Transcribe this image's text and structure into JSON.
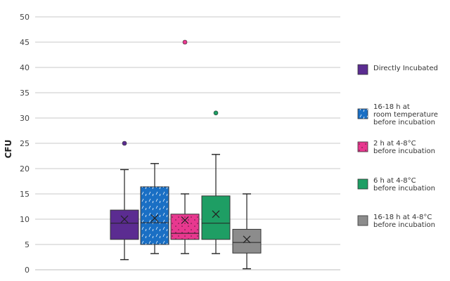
{
  "chart_data": {
    "type": "box",
    "ylabel": "CFU",
    "ylim": [
      0,
      50
    ],
    "yticks": [
      0,
      5,
      10,
      15,
      20,
      25,
      30,
      35,
      40,
      45,
      50
    ],
    "grid": true,
    "legend_position": "right",
    "series": [
      {
        "name": "Directly Incubated",
        "legend_lines": [
          "Directly Incubated"
        ],
        "color": "#5B2C91",
        "pattern": "none",
        "min": 2,
        "q1": 6,
        "median": 9.2,
        "q3": 11.8,
        "max": 19.8,
        "mean": 10,
        "outliers": [
          25
        ]
      },
      {
        "name": "16-18 h at room temperature before incubation",
        "legend_lines": [
          "16-18 h at",
          "room temperature",
          "before incubation"
        ],
        "color": "#1A6FC4",
        "pattern": "dashes",
        "min": 3.2,
        "q1": 5,
        "median": 9.3,
        "q3": 16.4,
        "max": 21,
        "mean": 10.2,
        "outliers": []
      },
      {
        "name": "2 h at 4-8°C before incubation",
        "legend_lines": [
          "2 h at 4-8°C",
          "before incubation"
        ],
        "color": "#E8388F",
        "pattern": "dots",
        "min": 3.2,
        "q1": 6,
        "median": 7.2,
        "q3": 11,
        "max": 15,
        "mean": 9.8,
        "outliers": [
          45
        ]
      },
      {
        "name": "6 h at 4-8°C before incubation",
        "legend_lines": [
          "6 h at 4-8°C",
          "before incubation"
        ],
        "color": "#1E9E64",
        "pattern": "none",
        "min": 3.2,
        "q1": 6,
        "median": 9.2,
        "q3": 14.6,
        "max": 22.8,
        "mean": 11,
        "outliers": [
          31
        ]
      },
      {
        "name": "16-18 h at 4-8°C before incubation",
        "legend_lines": [
          "16-18 h at 4-8°C",
          "before incubation"
        ],
        "color": "#8C8C8C",
        "pattern": "none",
        "min": 0.2,
        "q1": 3.3,
        "median": 5.4,
        "q3": 8,
        "max": 15,
        "mean": 6,
        "outliers": []
      }
    ],
    "draw_order": [
      0,
      1,
      3,
      2,
      4
    ]
  }
}
